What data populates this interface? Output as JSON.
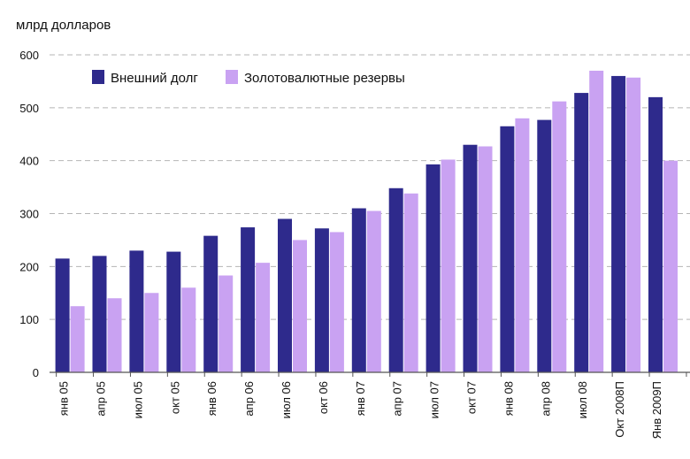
{
  "chart_data": {
    "type": "bar",
    "ylabel": "млрд долларов",
    "ylim": [
      0,
      600
    ],
    "yticks": [
      "0",
      "100",
      "200",
      "300",
      "400",
      "500",
      "600"
    ],
    "grid": true,
    "legend_position": "top-left",
    "categories": [
      "янв 05",
      "апр 05",
      "июл 05",
      "окт 05",
      "янв 06",
      "апр 06",
      "июл 06",
      "окт 06",
      "янв 07",
      "апр 07",
      "июл 07",
      "окт 07",
      "янв 08",
      "апр 08",
      "июл 08",
      "Окт 2008П",
      "Янв 2009П"
    ],
    "series": [
      {
        "name": "Внешний долг",
        "color": "#2e2a8c",
        "values": [
          215,
          220,
          230,
          228,
          258,
          274,
          290,
          272,
          310,
          348,
          393,
          430,
          465,
          477,
          528,
          560,
          520
        ]
      },
      {
        "name": "Золотовалютные резервы",
        "color": "#c9a2f2",
        "values": [
          125,
          140,
          150,
          160,
          183,
          207,
          250,
          265,
          305,
          338,
          402,
          427,
          480,
          512,
          570,
          557,
          400
        ]
      }
    ]
  }
}
